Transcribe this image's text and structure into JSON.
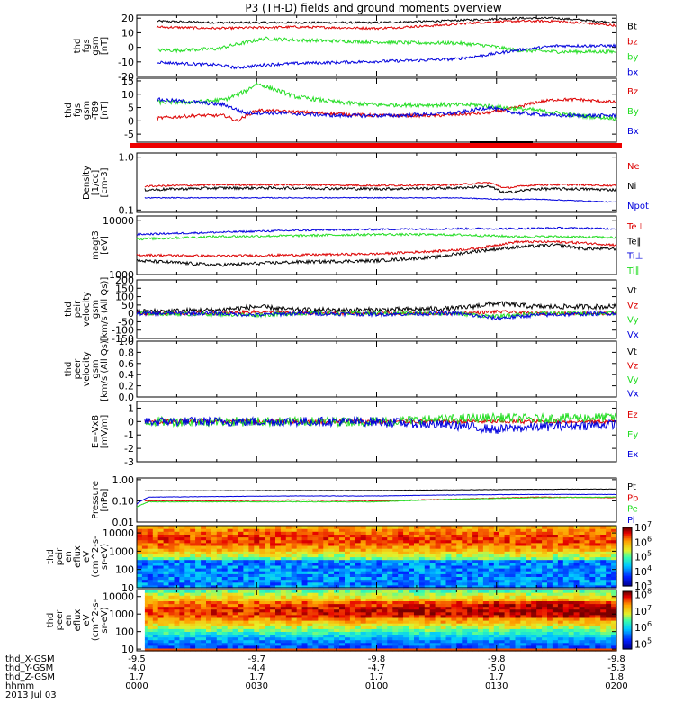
{
  "chart_data": {
    "type": "line",
    "title": "P3 (TH-D) fields and ground moments overview",
    "time": {
      "x_range": [
        0,
        120
      ],
      "x_units": "minutes since 2013-07-03 00:00",
      "major_ticks": [
        0,
        30,
        60,
        90,
        120
      ],
      "date_label": "2013 Jul 03",
      "ephemeris_labels": [
        "thd_X-GSM",
        "thd_Y-GSM",
        "thd_Z-GSM",
        "hhmm"
      ],
      "ephemeris_rows": [
        [
          "-9.5",
          "-9.7",
          "-9.8",
          "-9.8",
          "-9.8"
        ],
        [
          "-4.0",
          "-4.4",
          "-4.7",
          "-5.0",
          "-5.3"
        ],
        [
          "1.7",
          "1.7",
          "1.7",
          "1.7",
          "1.8"
        ],
        [
          "0000",
          "0030",
          "0100",
          "0130",
          "0200"
        ]
      ]
    },
    "colors": {
      "black": "#000000",
      "red": "#dd0000",
      "green": "#22dd22",
      "blue": "#0000dd"
    },
    "panels": [
      {
        "id": "fgs",
        "ylabel_lines": [
          "thd",
          "fgs",
          "gsm",
          "[nT]"
        ],
        "scale": "linear",
        "ylim": [
          -20,
          22
        ],
        "ticks": [
          20,
          10,
          0,
          -10,
          -20
        ],
        "series": [
          {
            "name": "Bt",
            "color": "black",
            "x": [
              5,
              20,
              40,
              60,
              75,
              85,
              95,
              105,
              110,
              120
            ],
            "values": [
              18,
              17,
              17,
              17,
              18,
              19,
              20,
              20,
              19,
              17
            ],
            "noise": 0.7
          },
          {
            "name": "bz",
            "color": "red",
            "x": [
              5,
              20,
              40,
              60,
              75,
              85,
              95,
              105,
              110,
              120
            ],
            "values": [
              14,
              13,
              14,
              13,
              15,
              17,
              18,
              18,
              17,
              15
            ],
            "noise": 0.8
          },
          {
            "name": "by",
            "color": "green",
            "x": [
              5,
              10,
              20,
              25,
              32,
              40,
              55,
              70,
              80,
              88,
              95,
              105,
              112,
              120
            ],
            "values": [
              -2,
              -2,
              -1,
              2,
              6,
              5,
              4,
              3,
              3,
              1,
              -2,
              -3,
              -3,
              -3
            ],
            "noise": 1.2
          },
          {
            "name": "bx",
            "color": "blue",
            "x": [
              5,
              10,
              20,
              25,
              32,
              40,
              55,
              70,
              80,
              88,
              95,
              105,
              112,
              120
            ],
            "values": [
              -10,
              -11,
              -12,
              -14,
              -12,
              -11,
              -10,
              -9,
              -8,
              -5,
              -2,
              1,
              1,
              1
            ],
            "noise": 1.0
          }
        ]
      },
      {
        "id": "fgs-t89",
        "ylabel_lines": [
          "thd",
          "fgs",
          "gsm",
          "-T89",
          "[nT]"
        ],
        "scale": "linear",
        "ylim": [
          -8,
          16
        ],
        "ticks": [
          15,
          10,
          5,
          0,
          -5
        ],
        "series": [
          {
            "name": "Bz",
            "color": "red",
            "x": [
              5,
              15,
              22,
              25,
              30,
              45,
              60,
              75,
              88,
              95,
              100,
              105,
              110,
              120
            ],
            "values": [
              1,
              2,
              2,
              0,
              4,
              3,
              2,
              2,
              3,
              5,
              7,
              8,
              8,
              7
            ],
            "noise": 0.6
          },
          {
            "name": "By",
            "color": "green",
            "x": [
              5,
              15,
              22,
              27,
              30,
              40,
              50,
              60,
              75,
              85,
              92,
              100,
              110,
              120
            ],
            "values": [
              7,
              7,
              8,
              11,
              14,
              9,
              7,
              6,
              6,
              6,
              5,
              4,
              2,
              1
            ],
            "noise": 0.8
          },
          {
            "name": "Bx",
            "color": "blue",
            "x": [
              5,
              15,
              22,
              27,
              35,
              50,
              65,
              80,
              88,
              95,
              105,
              112,
              120
            ],
            "values": [
              8,
              7,
              6,
              3,
              3,
              2,
              2,
              3,
              5,
              3,
              2,
              2,
              2
            ],
            "noise": 0.7
          }
        ]
      },
      {
        "id": "density",
        "ylabel_lines": [
          "Density",
          "[1/cc]",
          "[cm-3]"
        ],
        "scale": "log",
        "ylim": [
          0.09,
          1.2
        ],
        "ticks": [
          1.0,
          0.1
        ],
        "tick_labels": [
          "1.0",
          "0.1"
        ],
        "series": [
          {
            "name": "Ne",
            "color": "red",
            "x": [
              2,
              20,
              40,
              60,
              80,
              88,
              92,
              100,
              110,
              120
            ],
            "values": [
              0.28,
              0.3,
              0.3,
              0.29,
              0.3,
              0.33,
              0.26,
              0.3,
              0.3,
              0.29
            ],
            "noise": 0.04
          },
          {
            "name": "Ni",
            "color": "black",
            "x": [
              2,
              20,
              40,
              60,
              80,
              88,
              92,
              100,
              110,
              120
            ],
            "values": [
              0.24,
              0.26,
              0.26,
              0.25,
              0.26,
              0.28,
              0.21,
              0.25,
              0.25,
              0.24
            ],
            "noise": 0.06
          },
          {
            "name": "Npot",
            "color": "blue",
            "x": [
              2,
              20,
              40,
              60,
              80,
              90,
              100,
              110,
              120
            ],
            "values": [
              0.17,
              0.17,
              0.17,
              0.17,
              0.17,
              0.16,
              0.16,
              0.15,
              0.14
            ],
            "noise": 0.02
          }
        ]
      },
      {
        "id": "temperature",
        "ylabel_lines": [
          "magt3",
          "[eV]"
        ],
        "scale": "log",
        "ylim": [
          1000,
          12000
        ],
        "ticks": [
          10000,
          1000
        ],
        "tick_labels": [
          "10000",
          "1000"
        ],
        "series": [
          {
            "name": "Te⊥",
            "color": "red",
            "x": [
              0,
              20,
              40,
              60,
              75,
              85,
              95,
              105,
              112,
              120
            ],
            "values": [
              2300,
              2200,
              2300,
              2400,
              2700,
              3000,
              4000,
              4000,
              3800,
              3500
            ],
            "noise": 0.05
          },
          {
            "name": "Te∥",
            "color": "black",
            "x": [
              0,
              20,
              40,
              60,
              75,
              85,
              95,
              105,
              112,
              120
            ],
            "values": [
              1800,
              1500,
              1700,
              1800,
              2100,
              2700,
              3200,
              3500,
              3000,
              3000
            ],
            "noise": 0.07
          },
          {
            "name": "Ti⊥",
            "color": "blue",
            "x": [
              0,
              20,
              40,
              60,
              80,
              95,
              105,
              120
            ],
            "values": [
              5500,
              6000,
              6500,
              6800,
              7000,
              7000,
              7200,
              7000
            ],
            "noise": 0.04
          },
          {
            "name": "Ti∥",
            "color": "green",
            "x": [
              0,
              20,
              40,
              60,
              80,
              95,
              105,
              120
            ],
            "values": [
              4500,
              5000,
              5200,
              5500,
              5400,
              5000,
              5000,
              4800
            ],
            "noise": 0.05
          }
        ]
      },
      {
        "id": "peir-velocity",
        "ylabel_lines": [
          "thd",
          "peir",
          "velocity",
          "gsm",
          "[km/s (All Qs)]"
        ],
        "scale": "linear",
        "ylim": [
          -150,
          200
        ],
        "ticks": [
          200,
          150,
          100,
          50,
          0,
          -50,
          -100,
          -150
        ],
        "series": [
          {
            "name": "Vt",
            "color": "black",
            "x": [
              0,
              20,
              30,
              40,
              60,
              80,
              90,
              100,
              110,
              120
            ],
            "values": [
              10,
              20,
              40,
              20,
              20,
              30,
              60,
              40,
              40,
              40
            ],
            "noise": 15
          },
          {
            "name": "Vz",
            "color": "red",
            "x": [
              0,
              20,
              30,
              40,
              60,
              80,
              90,
              100,
              120
            ],
            "values": [
              0,
              0,
              10,
              0,
              0,
              0,
              10,
              0,
              0
            ],
            "noise": 10
          },
          {
            "name": "Vy",
            "color": "green",
            "x": [
              0,
              20,
              30,
              40,
              60,
              80,
              90,
              100,
              120
            ],
            "values": [
              0,
              -5,
              -10,
              0,
              0,
              0,
              -20,
              0,
              0
            ],
            "noise": 12
          },
          {
            "name": "Vx",
            "color": "blue",
            "x": [
              0,
              20,
              30,
              40,
              60,
              80,
              90,
              100,
              120
            ],
            "values": [
              0,
              0,
              -10,
              0,
              -5,
              0,
              -30,
              -10,
              0
            ],
            "noise": 12
          }
        ]
      },
      {
        "id": "peer-velocity",
        "ylabel_lines": [
          "thd",
          "peer",
          "velocity",
          "gsm",
          "[km/s (All Qs)]"
        ],
        "scale": "linear",
        "ylim": [
          0,
          1.0
        ],
        "ticks": [
          1.0,
          0.8,
          0.6,
          0.4,
          0.2,
          0.0
        ],
        "tick_labels": [
          "1.0",
          "0.8",
          "0.6",
          "0.4",
          "0.2",
          "0.0"
        ],
        "series": [
          {
            "name": "Vt",
            "color": "black",
            "x": [],
            "values": []
          },
          {
            "name": "Vz",
            "color": "red",
            "x": [],
            "values": []
          },
          {
            "name": "Vy",
            "color": "green",
            "x": [],
            "values": []
          },
          {
            "name": "Vx",
            "color": "blue",
            "x": [],
            "values": []
          }
        ]
      },
      {
        "id": "efield",
        "ylabel_lines": [
          "E=-VxB",
          "[mV/m]"
        ],
        "scale": "linear",
        "ylim": [
          -3,
          1.5
        ],
        "ticks": [
          1,
          0,
          -1,
          -2,
          -3
        ],
        "series": [
          {
            "name": "Ez",
            "color": "red",
            "x": [
              2,
              20,
              40,
              60,
              80,
              100,
              120
            ],
            "values": [
              0,
              0,
              0,
              0,
              0,
              0,
              0
            ],
            "noise": 0.15
          },
          {
            "name": "Ey",
            "color": "green",
            "x": [
              2,
              20,
              40,
              60,
              80,
              90,
              100,
              110,
              120
            ],
            "values": [
              0,
              0,
              0,
              0,
              0.2,
              0.3,
              0.2,
              0.3,
              0.3
            ],
            "noise": 0.35
          },
          {
            "name": "Ex",
            "color": "blue",
            "x": [
              2,
              20,
              40,
              60,
              80,
              90,
              100,
              110,
              120
            ],
            "values": [
              0,
              0,
              0,
              0,
              -0.3,
              -0.6,
              -0.4,
              -0.3,
              -0.2
            ],
            "noise": 0.35
          }
        ]
      },
      {
        "id": "pressure",
        "ylabel_lines": [
          "Pressure",
          "[nPa]"
        ],
        "scale": "log",
        "ylim": [
          0.01,
          1.2
        ],
        "ticks": [
          1.0,
          0.1,
          0.01
        ],
        "tick_labels": [
          "1.00",
          "0.10",
          "0.01"
        ],
        "series": [
          {
            "name": "Pt",
            "color": "black",
            "x": [
              2,
              20,
              40,
              60,
              80,
              100,
              120
            ],
            "values": [
              0.3,
              0.3,
              0.31,
              0.31,
              0.33,
              0.35,
              0.36
            ],
            "noise": 0.02
          },
          {
            "name": "Pb",
            "color": "red",
            "x": [
              2,
              20,
              40,
              60,
              80,
              100,
              120
            ],
            "values": [
              0.1,
              0.1,
              0.11,
              0.1,
              0.12,
              0.15,
              0.14
            ],
            "noise": 0.04
          },
          {
            "name": "Pe",
            "color": "green",
            "x": [
              0,
              3,
              20,
              40,
              60,
              80,
              100,
              120
            ],
            "values": [
              0.05,
              0.09,
              0.09,
              0.09,
              0.09,
              0.12,
              0.14,
              0.15
            ],
            "noise": 0.03
          },
          {
            "name": "Pi",
            "color": "blue",
            "x": [
              0,
              3,
              20,
              40,
              60,
              80,
              100,
              120
            ],
            "values": [
              0.07,
              0.15,
              0.16,
              0.17,
              0.17,
              0.19,
              0.2,
              0.2
            ],
            "noise": 0.02
          }
        ]
      }
    ],
    "spectrograms": [
      {
        "id": "peir-eflux",
        "type": "heatmap",
        "ylabel_lines": [
          "thd",
          "peir",
          "en",
          "eflux",
          "eV",
          "(cm^2-s-",
          "sr-eV)"
        ],
        "scale": "log",
        "ylim": [
          10,
          25000
        ],
        "ticks": [
          10000,
          1000,
          100,
          10
        ],
        "tick_labels": [
          "10000",
          "1000",
          "100",
          "10"
        ],
        "colorbar_min_exp": 3,
        "colorbar_max_exp": 7,
        "colorbar_labels": [
          "10",
          "10",
          "10",
          "10",
          "10"
        ],
        "colorbar_exponents": [
          "7",
          "6",
          "5",
          "4",
          "3"
        ],
        "band_peak_log_energy": 3.7
      },
      {
        "id": "peer-eflux",
        "type": "heatmap",
        "ylabel_lines": [
          "thd",
          "peer",
          "en",
          "eflux",
          "eV",
          "(cm^2-s-",
          "sr-eV)"
        ],
        "scale": "log",
        "ylim": [
          8,
          25000
        ],
        "ticks": [
          10000,
          1000,
          100,
          10
        ],
        "tick_labels": [
          "10000",
          "1000",
          "100",
          "10"
        ],
        "colorbar_min_exp": 4.7,
        "colorbar_max_exp": 8.2,
        "colorbar_labels": [
          "10",
          "10",
          "10",
          "10"
        ],
        "colorbar_exponents": [
          "8",
          "7",
          "6",
          "5"
        ],
        "band_peak_log_energy": 3.2
      }
    ]
  }
}
